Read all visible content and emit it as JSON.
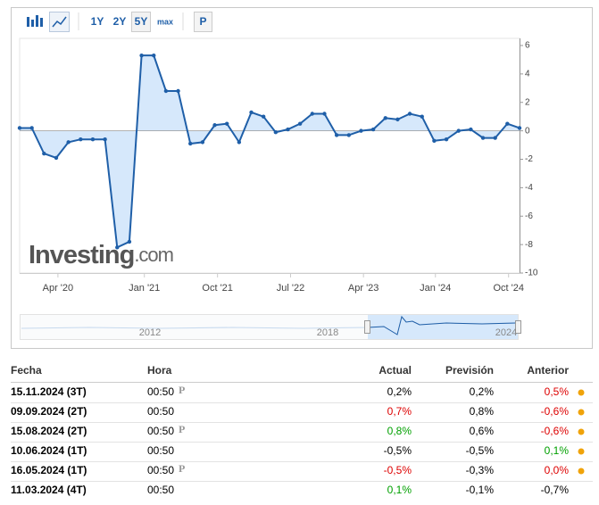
{
  "toolbar": {
    "ranges": [
      "1Y",
      "2Y",
      "5Y",
      "max"
    ],
    "active_range": 2,
    "extra": "P"
  },
  "chart_data": {
    "type": "line",
    "series": [
      {
        "color": "#1f5fa8",
        "fill": "#d6e8fb",
        "values": [
          0.2,
          0.2,
          -1.6,
          -1.9,
          -0.8,
          -0.6,
          -0.6,
          -0.6,
          -8.2,
          -7.8,
          5.3,
          5.3,
          2.8,
          2.8,
          -0.9,
          -0.8,
          0.4,
          0.5,
          -0.8,
          1.3,
          1.0,
          -0.1,
          0.1,
          0.5,
          1.2,
          1.2,
          -0.3,
          -0.3,
          0.0,
          0.1,
          0.9,
          0.8,
          1.2,
          1.0,
          -0.7,
          -0.6,
          0.0,
          0.1,
          -0.5,
          -0.5,
          0.5,
          0.2
        ]
      }
    ],
    "xlim": [
      0,
      41
    ],
    "xticks": [
      {
        "value": 3.14,
        "label": "Apr '20"
      },
      {
        "value": 10.23,
        "label": "Jan '21"
      },
      {
        "value": 16.23,
        "label": "Oct '21"
      },
      {
        "value": 22.22,
        "label": "Jul '22"
      },
      {
        "value": 28.2,
        "label": "Apr '23"
      },
      {
        "value": 34.1,
        "label": "Jan '24"
      },
      {
        "value": 40.1,
        "label": "Oct '24"
      }
    ],
    "ylim": [
      -10,
      6
    ],
    "yticks": [
      6,
      4,
      2,
      0,
      -2,
      -4,
      -6,
      -8,
      -10
    ],
    "grid": false,
    "watermark": [
      "Investing",
      ".com"
    ],
    "navigator_labels": [
      "2012",
      "2018",
      "2024"
    ]
  },
  "table": {
    "header": [
      "Fecha",
      "Hora",
      "Actual",
      "Previsión",
      "Anterior"
    ],
    "rows": [
      {
        "cells": [
          "15.11.2024 (3T)",
          "00:50",
          "0,2%",
          "0,2%",
          "0,5%"
        ],
        "mark": "P",
        "actual_color": "#000000",
        "anterior_color": "#dd0000"
      },
      {
        "cells": [
          "09.09.2024 (2T)",
          "00:50",
          "0,7%",
          "0,8%",
          "-0,6%"
        ],
        "actual_color": "#dd0000",
        "anterior_color": "#dd0000"
      },
      {
        "cells": [
          "15.08.2024 (2T)",
          "00:50",
          "0,8%",
          "0,6%",
          "-0,6%"
        ],
        "mark": "P",
        "actual_color": "#00a000",
        "anterior_color": "#dd0000"
      },
      {
        "cells": [
          "10.06.2024 (1T)",
          "00:50",
          "-0,5%",
          "-0,5%",
          "0,1%"
        ],
        "actual_color": "#000000",
        "anterior_color": "#00a000"
      },
      {
        "cells": [
          "16.05.2024 (1T)",
          "00:50",
          "-0,5%",
          "-0,3%",
          "0,0%"
        ],
        "mark": "P",
        "actual_color": "#dd0000",
        "anterior_color": "#dd0000"
      },
      {
        "cells": [
          "11.03.2024 (4T)",
          "00:50",
          "0,1%",
          "-0,1%",
          "-0,7%"
        ],
        "actual_color": "#00a000",
        "anterior_color": "#000000"
      }
    ]
  }
}
